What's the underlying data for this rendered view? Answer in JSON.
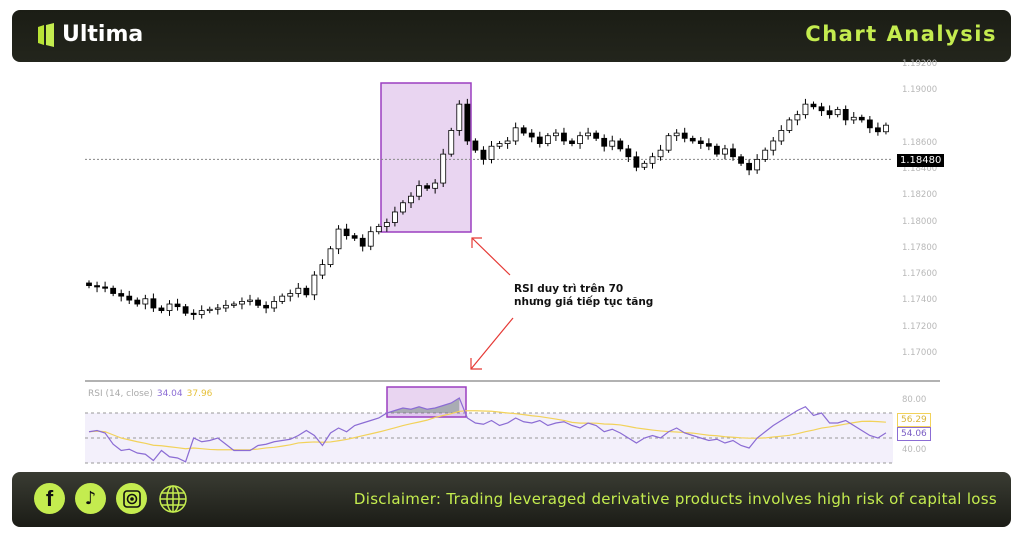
{
  "header": {
    "brand": "Ultima",
    "title": "Chart Analysis"
  },
  "footer": {
    "disclaimer": "Disclaimer: Trading leveraged derivative products involves high risk of capital loss",
    "social_icons": [
      "facebook-icon",
      "tiktok-icon",
      "camera-icon",
      "globe-icon"
    ]
  },
  "colors": {
    "accent": "#c4ec4f",
    "highlight_box": "#9b3fc0",
    "arrow": "#e53935",
    "rsi": "#8b6cd4",
    "rsi_ma": "#f2d25a"
  },
  "annotation": {
    "line1": "RSI duy trì trên 70",
    "line2": "nhưng giá tiếp tục tăng"
  },
  "chart_data": [
    {
      "type": "candlestick",
      "ylim": [
        1.169,
        1.1925
      ],
      "y_ticks": [
        "1.19200",
        "1.19000",
        "1.18600",
        "1.18400",
        "1.18200",
        "1.18000",
        "1.17800",
        "1.17600",
        "1.17400",
        "1.17200",
        "1.17000"
      ],
      "current_price_label": "1.18480",
      "reference_line": 1.1848,
      "close": [
        1.1752,
        1.1751,
        1.175,
        1.1746,
        1.1744,
        1.1741,
        1.1738,
        1.1742,
        1.1735,
        1.1733,
        1.1738,
        1.1736,
        1.1731,
        1.173,
        1.1733,
        1.1734,
        1.1735,
        1.1737,
        1.1738,
        1.174,
        1.1741,
        1.1737,
        1.1735,
        1.174,
        1.1744,
        1.1746,
        1.175,
        1.1745,
        1.176,
        1.1768,
        1.178,
        1.1795,
        1.179,
        1.1788,
        1.1782,
        1.1793,
        1.1797,
        1.18,
        1.1808,
        1.1815,
        1.182,
        1.1828,
        1.1826,
        1.183,
        1.1852,
        1.187,
        1.189,
        1.1862,
        1.1855,
        1.1848,
        1.1858,
        1.186,
        1.1862,
        1.1872,
        1.1868,
        1.1865,
        1.186,
        1.1866,
        1.1868,
        1.1862,
        1.186,
        1.1866,
        1.1868,
        1.1864,
        1.1858,
        1.1862,
        1.1856,
        1.185,
        1.1842,
        1.1845,
        1.185,
        1.1855,
        1.1866,
        1.1868,
        1.1864,
        1.1862,
        1.186,
        1.1858,
        1.1852,
        1.1856,
        1.185,
        1.1845,
        1.184,
        1.1848,
        1.1855,
        1.1862,
        1.187,
        1.1878,
        1.1882,
        1.189,
        1.1888,
        1.1885,
        1.1882,
        1.1886,
        1.1878,
        1.188,
        1.1878,
        1.1872,
        1.1869,
        1.1874
      ],
      "highlight_range": [
        37,
        46
      ]
    },
    {
      "type": "line",
      "title": "RSI (14, close)",
      "legend_values": [
        "34.04",
        "37.96"
      ],
      "ylim": [
        27,
        88
      ],
      "y_ticks": [
        "80.00",
        "40.00"
      ],
      "bands": [
        70,
        50,
        30
      ],
      "last_values": {
        "rsi": "54.06",
        "ma": "56.29"
      },
      "rsi": [
        55,
        56,
        54,
        45,
        40,
        41,
        38,
        37,
        32,
        40,
        35,
        34,
        31,
        50,
        47,
        48,
        50,
        45,
        40,
        40,
        40,
        44,
        45,
        47,
        48,
        49,
        52,
        56,
        52,
        44,
        54,
        58,
        55,
        60,
        62,
        64,
        66,
        70,
        72,
        74,
        73,
        75,
        73,
        74,
        76,
        78,
        82,
        66,
        62,
        61,
        64,
        60,
        62,
        66,
        63,
        62,
        64,
        60,
        62,
        63,
        60,
        58,
        62,
        60,
        55,
        57,
        54,
        50,
        46,
        50,
        52,
        50,
        55,
        58,
        54,
        52,
        50,
        48,
        49,
        46,
        48,
        44,
        42,
        50,
        55,
        60,
        64,
        68,
        72,
        75,
        68,
        70,
        62,
        62,
        64,
        60,
        56,
        52,
        50,
        54.06
      ],
      "highlight_range": [
        37,
        46
      ]
    }
  ]
}
